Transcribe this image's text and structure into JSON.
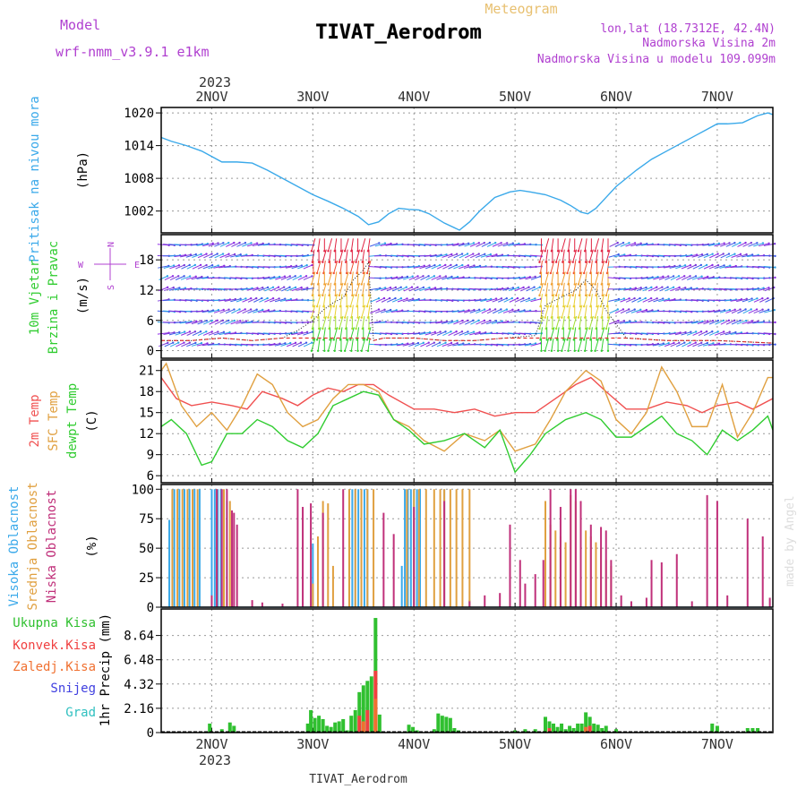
{
  "header": {
    "model_label": "Model",
    "model_name": "wrf-nmm_v3.9.1  e1km",
    "title": "TIVAT_Aerodrom",
    "subtitle": "Meteogram",
    "lonlat": "lon,lat (18.7312E, 42.4N)",
    "elev_station": "Nadmorska Visina 2m",
    "elev_model": "Nadmorska Visina u modelu 109.099m",
    "top_year": "2023",
    "bottom_year": "2023",
    "footer": "TIVAT_Aerodrom",
    "watermark": "made by Angel"
  },
  "colors": {
    "pressure": "#3aa9ea",
    "t2m": "#f05050",
    "sfc": "#e0a040",
    "dewpt": "#30cc30",
    "high_cloud": "#3aa9ea",
    "mid_cloud": "#e0a040",
    "low_cloud": "#c0307a",
    "total_precip": "#30c030",
    "conv_precip": "#f04040",
    "frozen_precip": "#f07030",
    "snow": "#4040e0",
    "grad": "#30c0c0",
    "wind_axis": "#b040d0"
  },
  "chart_data": [
    {
      "type": "line",
      "panel": "pressure",
      "ylabel": "Pritisak na nivou mora",
      "unit": "(hPa)",
      "x_ticks": [
        "2NOV",
        "3NOV",
        "4NOV",
        "5NOV",
        "6NOV",
        "7NOV"
      ],
      "x_range_days": [
        1.5,
        7.55
      ],
      "ylim": [
        998,
        1021
      ],
      "y_ticks": [
        1002,
        1008,
        1014,
        1020
      ],
      "grid": true,
      "series": [
        {
          "color": "pressure",
          "x": [
            1.5,
            1.6,
            1.75,
            1.9,
            2.0,
            2.1,
            2.25,
            2.4,
            2.55,
            2.7,
            2.85,
            3.0,
            3.15,
            3.3,
            3.45,
            3.55,
            3.65,
            3.75,
            3.85,
            3.95,
            4.05,
            4.15,
            4.3,
            4.45,
            4.55,
            4.65,
            4.8,
            4.95,
            5.05,
            5.15,
            5.3,
            5.45,
            5.55,
            5.65,
            5.72,
            5.8,
            5.9,
            6.0,
            6.1,
            6.2,
            6.35,
            6.5,
            6.65,
            6.8,
            6.9,
            7.0,
            7.1,
            7.25,
            7.4,
            7.5,
            7.55
          ],
          "y": [
            1015.5,
            1014.8,
            1014,
            1013,
            1012,
            1011,
            1011,
            1010.8,
            1009.5,
            1008,
            1006.5,
            1005,
            1003.8,
            1002.5,
            1001,
            999.5,
            1000,
            1001.5,
            1002.5,
            1002.3,
            1002.2,
            1001.5,
            999.8,
            998.5,
            1000,
            1002,
            1004.5,
            1005.5,
            1005.8,
            1005.5,
            1005,
            1004,
            1003,
            1001.8,
            1001.5,
            1002.5,
            1004.5,
            1006.5,
            1008,
            1009.5,
            1011.5,
            1013,
            1014.5,
            1016,
            1017,
            1018,
            1018,
            1018.2,
            1019.5,
            1020,
            1019.7
          ]
        }
      ]
    },
    {
      "type": "line",
      "panel": "wind",
      "ylabel": "10m Vjetar Brzina i Pravac",
      "unit": "(m/s)",
      "compass": [
        "N",
        "W",
        "E",
        "S"
      ],
      "ylim": [
        -1.5,
        23
      ],
      "y_ticks": [
        0,
        6,
        12,
        18
      ],
      "grid": true,
      "series": [
        {
          "name": "speed",
          "x": [
            1.5,
            1.8,
            2.1,
            2.4,
            2.7,
            2.85,
            3.0,
            3.1,
            3.2,
            3.3,
            3.4,
            3.5,
            3.55,
            3.6,
            3.7,
            4.0,
            4.3,
            4.6,
            4.9,
            5.2,
            5.3,
            5.4,
            5.5,
            5.6,
            5.7,
            5.8,
            5.9,
            6.1,
            6.5,
            7.0,
            7.55
          ],
          "y": [
            2,
            2,
            2.5,
            2,
            2.5,
            4,
            6,
            8,
            9.5,
            10.5,
            14,
            16,
            17.5,
            2,
            2.5,
            2.5,
            2,
            2,
            2.5,
            3,
            9,
            10,
            11,
            12,
            14,
            12,
            8,
            2.5,
            2,
            2,
            1.5
          ]
        }
      ]
    },
    {
      "type": "line",
      "panel": "temperature",
      "ylabel": "2m Temp / SFC Temp / dewpt Temp",
      "unit": "(C)",
      "ylim": [
        5,
        22.5
      ],
      "y_ticks": [
        6,
        9,
        12,
        15,
        18,
        21
      ],
      "grid": true,
      "series": [
        {
          "name": "2m Temp",
          "color": "t2m",
          "x": [
            1.5,
            1.65,
            1.8,
            2.0,
            2.2,
            2.35,
            2.5,
            2.7,
            2.85,
            3.0,
            3.15,
            3.3,
            3.45,
            3.6,
            3.75,
            4.0,
            4.2,
            4.4,
            4.6,
            4.8,
            5.0,
            5.2,
            5.4,
            5.6,
            5.75,
            5.9,
            6.1,
            6.3,
            6.5,
            6.7,
            6.85,
            7.0,
            7.2,
            7.35,
            7.55
          ],
          "y": [
            20,
            17,
            16,
            16.5,
            16,
            15.5,
            18,
            17,
            16,
            17.5,
            18.5,
            18,
            19,
            19,
            17.5,
            15.5,
            15.5,
            15,
            15.5,
            14.5,
            15,
            15,
            17,
            19,
            20,
            18,
            15.5,
            15.5,
            16.5,
            16,
            15,
            16,
            16.5,
            15.5,
            17
          ]
        },
        {
          "name": "SFC Temp",
          "color": "sfc",
          "x": [
            1.5,
            1.55,
            1.7,
            1.85,
            2.0,
            2.15,
            2.3,
            2.45,
            2.6,
            2.75,
            2.9,
            3.05,
            3.2,
            3.35,
            3.5,
            3.65,
            3.8,
            3.95,
            4.1,
            4.3,
            4.5,
            4.7,
            4.85,
            5.0,
            5.2,
            5.35,
            5.5,
            5.7,
            5.85,
            6.0,
            6.15,
            6.3,
            6.45,
            6.6,
            6.75,
            6.9,
            7.05,
            7.2,
            7.35,
            7.5,
            7.55
          ],
          "y": [
            21,
            22,
            16,
            13,
            15,
            12.5,
            16,
            20.5,
            19,
            15,
            13,
            14,
            17,
            19,
            19,
            18,
            14,
            13,
            11,
            9.5,
            12,
            11,
            12.5,
            9.5,
            10.5,
            14,
            18,
            21,
            19.5,
            14,
            12,
            15,
            21.5,
            18,
            13,
            13,
            19,
            11.5,
            15,
            20,
            20
          ]
        },
        {
          "name": "dewpt Temp",
          "color": "dewpt",
          "x": [
            1.5,
            1.6,
            1.75,
            1.9,
            2.0,
            2.15,
            2.3,
            2.45,
            2.6,
            2.75,
            2.9,
            3.05,
            3.2,
            3.35,
            3.5,
            3.65,
            3.8,
            3.95,
            4.1,
            4.3,
            4.5,
            4.7,
            4.85,
            5.0,
            5.15,
            5.3,
            5.5,
            5.7,
            5.85,
            6.0,
            6.15,
            6.3,
            6.45,
            6.6,
            6.75,
            6.9,
            7.05,
            7.2,
            7.35,
            7.5,
            7.55
          ],
          "y": [
            13,
            14,
            12,
            7.5,
            8,
            12,
            12,
            14,
            13,
            11,
            10,
            12,
            16,
            17,
            18,
            17.5,
            14,
            12.5,
            10.5,
            11,
            12,
            10,
            12.5,
            6.5,
            9,
            12,
            14,
            15,
            14,
            11.5,
            11.5,
            13,
            14.5,
            12,
            11,
            9,
            12.5,
            11,
            12.5,
            14.5,
            12.5
          ]
        }
      ]
    },
    {
      "type": "bar",
      "panel": "cloud",
      "ylabel": "Visoka Oblacnost / Srednja Oblacnost / Niska Oblacnost",
      "unit": "(%)",
      "ylim": [
        0,
        104
      ],
      "y_ticks": [
        0,
        25,
        50,
        75,
        100
      ],
      "grid": true,
      "series": [
        {
          "name": "Visoka Oblacnost",
          "color": "high_cloud",
          "x": [
            1.58,
            1.63,
            1.68,
            1.73,
            1.78,
            1.83,
            1.88,
            2.0,
            2.03,
            2.06,
            2.09,
            2.12,
            2.15,
            3.0,
            3.36,
            3.39,
            3.42,
            3.45,
            3.48,
            3.51,
            3.54,
            3.88,
            3.91,
            3.94,
            3.97,
            4.0,
            4.03,
            4.06,
            4.3,
            4.55
          ],
          "y": [
            74,
            100,
            100,
            100,
            100,
            100,
            100,
            100,
            100,
            100,
            100,
            95,
            90,
            54,
            100,
            100,
            100,
            100,
            100,
            100,
            100,
            35,
            100,
            100,
            100,
            100,
            100,
            100,
            100,
            6
          ]
        },
        {
          "name": "Srednja Oblacnost",
          "color": "mid_cloud",
          "x": [
            1.61,
            1.66,
            1.71,
            1.76,
            1.81,
            1.86,
            2.05,
            2.12,
            2.18,
            3.0,
            3.05,
            3.1,
            3.15,
            3.2,
            3.36,
            3.42,
            3.48,
            3.54,
            3.6,
            3.93,
            4.0,
            4.05,
            4.12,
            4.2,
            4.26,
            4.3,
            4.36,
            4.42,
            4.48,
            4.55,
            5.3,
            5.35,
            5.4,
            5.45,
            5.5,
            5.55,
            5.6,
            5.65,
            5.7,
            5.75,
            5.8,
            5.85,
            5.9,
            5.95
          ],
          "y": [
            100,
            100,
            100,
            100,
            100,
            100,
            100,
            100,
            90,
            20,
            60,
            90,
            88,
            35,
            100,
            100,
            100,
            100,
            100,
            100,
            100,
            100,
            100,
            100,
            100,
            100,
            100,
            100,
            100,
            100,
            90,
            70,
            65,
            60,
            55,
            95,
            90,
            80,
            65,
            60,
            55,
            50,
            40,
            35
          ]
        },
        {
          "name": "Niska Oblacnost",
          "color": "low_cloud",
          "x": [
            2.0,
            2.05,
            2.1,
            2.15,
            2.2,
            2.22,
            2.25,
            2.4,
            2.5,
            2.7,
            2.85,
            2.9,
            2.98,
            3.1,
            3.3,
            3.7,
            3.8,
            4.0,
            4.3,
            4.55,
            4.7,
            4.85,
            4.95,
            5.05,
            5.1,
            5.2,
            5.28,
            5.35,
            5.45,
            5.55,
            5.6,
            5.65,
            5.75,
            5.85,
            5.9,
            5.95,
            6.05,
            6.15,
            6.3,
            6.35,
            6.45,
            6.6,
            6.75,
            6.9,
            7.0,
            7.1,
            7.3,
            7.45,
            7.52
          ],
          "y": [
            10,
            100,
            100,
            100,
            82,
            80,
            70,
            6,
            4,
            3,
            100,
            85,
            88,
            80,
            100,
            80,
            62,
            85,
            90,
            5,
            10,
            12,
            70,
            40,
            20,
            28,
            40,
            100,
            85,
            100,
            100,
            90,
            70,
            68,
            65,
            40,
            10,
            5,
            8,
            40,
            38,
            45,
            5,
            95,
            90,
            10,
            75,
            60,
            8
          ]
        }
      ]
    },
    {
      "type": "bar",
      "panel": "precip",
      "ylabel": "1hr Precip",
      "unit": "(mm)",
      "ylim": [
        0,
        11
      ],
      "y_ticks": [
        0,
        2.16,
        4.32,
        6.48,
        8.64
      ],
      "grid": true,
      "legend": [
        "Ukupna Kisa",
        "Konvek.Kisa",
        "Zaledj.Kisa",
        "Snijeg",
        "Grad"
      ],
      "legend_position": "left",
      "series": [
        {
          "name": "Ukupna Kisa",
          "color": "total_precip",
          "x": [
            1.98,
            2.1,
            2.18,
            2.22,
            2.95,
            2.98,
            3.02,
            3.06,
            3.1,
            3.14,
            3.18,
            3.22,
            3.26,
            3.3,
            3.34,
            3.38,
            3.42,
            3.46,
            3.5,
            3.54,
            3.58,
            3.62,
            3.66,
            3.95,
            3.99,
            4.03,
            4.2,
            4.24,
            4.28,
            4.32,
            4.36,
            4.4,
            4.44,
            5.0,
            5.1,
            5.2,
            5.3,
            5.34,
            5.38,
            5.42,
            5.46,
            5.5,
            5.54,
            5.58,
            5.62,
            5.66,
            5.7,
            5.74,
            5.78,
            5.82,
            5.86,
            5.9,
            6.0,
            6.95,
            7.0,
            7.3,
            7.35,
            7.4
          ],
          "y": [
            0.8,
            0.3,
            0.9,
            0.6,
            0.8,
            2.0,
            1.3,
            1.5,
            1.2,
            0.6,
            0.5,
            0.9,
            1.0,
            1.2,
            0.2,
            1.5,
            2.0,
            3.6,
            4.2,
            4.6,
            5.0,
            10.2,
            1.6,
            0.7,
            0.5,
            0.2,
            0.3,
            1.7,
            1.5,
            1.4,
            1.3,
            0.4,
            0.2,
            0.2,
            0.3,
            0.3,
            1.4,
            1.0,
            0.8,
            0.5,
            0.8,
            0.3,
            0.6,
            0.4,
            0.8,
            0.8,
            1.8,
            1.4,
            0.8,
            0.7,
            0.4,
            0.6,
            0.3,
            0.8,
            0.6,
            0.4,
            0.4,
            0.4
          ]
        },
        {
          "name": "Konvek.Kisa",
          "color": "conv_precip",
          "x": [
            3.46,
            3.54,
            3.62,
            5.34,
            5.74
          ],
          "y": [
            1.5,
            2.0,
            5.5,
            0.4,
            0.6
          ]
        },
        {
          "name": "Zaledj.Kisa",
          "color": "frozen_precip",
          "x": [
            3.5,
            3.62,
            5.7
          ],
          "y": [
            1.0,
            3.0,
            0.5
          ]
        }
      ]
    }
  ]
}
